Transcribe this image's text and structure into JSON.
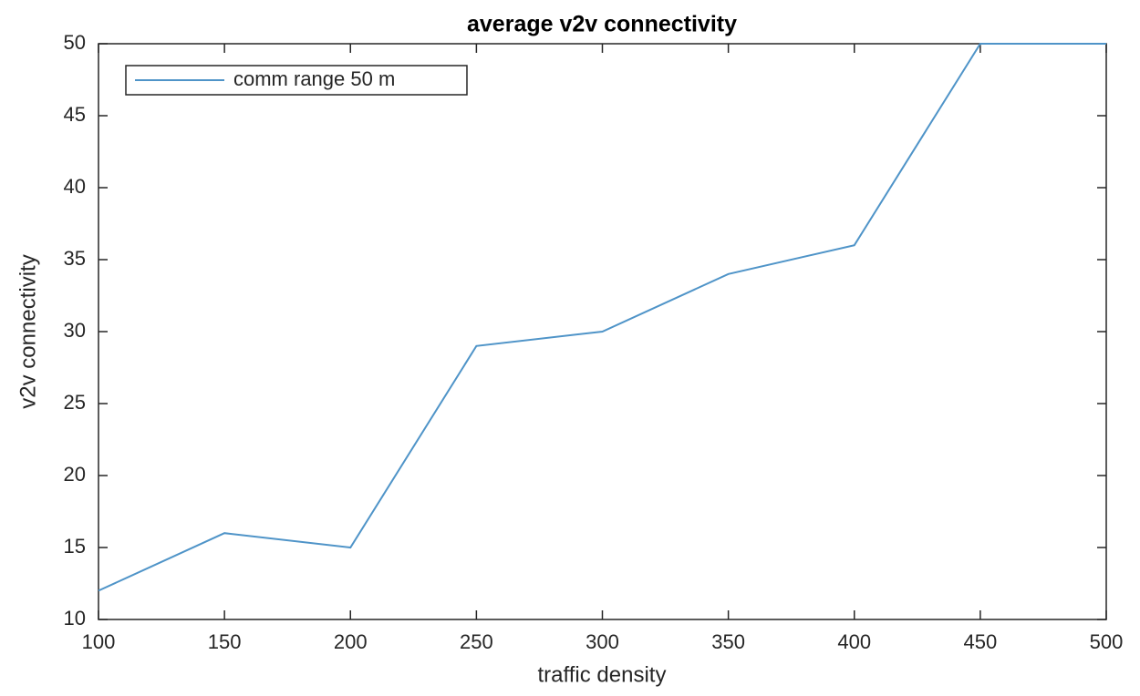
{
  "chart_data": {
    "type": "line",
    "title": "average v2v connectivity",
    "xlabel": "traffic density",
    "ylabel": "v2v connectivity",
    "x": [
      100,
      150,
      200,
      250,
      300,
      350,
      400,
      450,
      500
    ],
    "series": [
      {
        "name": "comm range 50 m",
        "color": "#4f94c8",
        "values": [
          12,
          16,
          15,
          29,
          30,
          34,
          36,
          50,
          50
        ]
      }
    ],
    "xlim": [
      100,
      500
    ],
    "xticks": [
      100,
      150,
      200,
      250,
      300,
      350,
      400,
      450,
      500
    ],
    "ylim": [
      10,
      50
    ],
    "yticks": [
      10,
      15,
      20,
      25,
      30,
      35,
      40,
      45,
      50
    ],
    "grid": false,
    "legend": "northwest"
  }
}
